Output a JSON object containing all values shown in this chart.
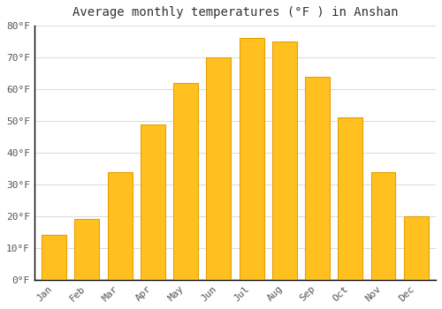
{
  "title": "Average monthly temperatures (°F ) in Anshan",
  "months": [
    "Jan",
    "Feb",
    "Mar",
    "Apr",
    "May",
    "Jun",
    "Jul",
    "Aug",
    "Sep",
    "Oct",
    "Nov",
    "Dec"
  ],
  "values": [
    14,
    19,
    34,
    49,
    62,
    70,
    76,
    75,
    64,
    51,
    34,
    20
  ],
  "bar_color": "#FFC020",
  "bar_edge_color": "#E8A000",
  "background_color": "#FFFFFF",
  "grid_color": "#DDDDDD",
  "ylim": [
    0,
    80
  ],
  "yticks": [
    0,
    10,
    20,
    30,
    40,
    50,
    60,
    70,
    80
  ],
  "ytick_labels": [
    "0°F",
    "10°F",
    "20°F",
    "30°F",
    "40°F",
    "50°F",
    "60°F",
    "70°F",
    "80°F"
  ],
  "title_fontsize": 10,
  "tick_fontsize": 8,
  "font_family": "monospace",
  "bar_width": 0.75
}
